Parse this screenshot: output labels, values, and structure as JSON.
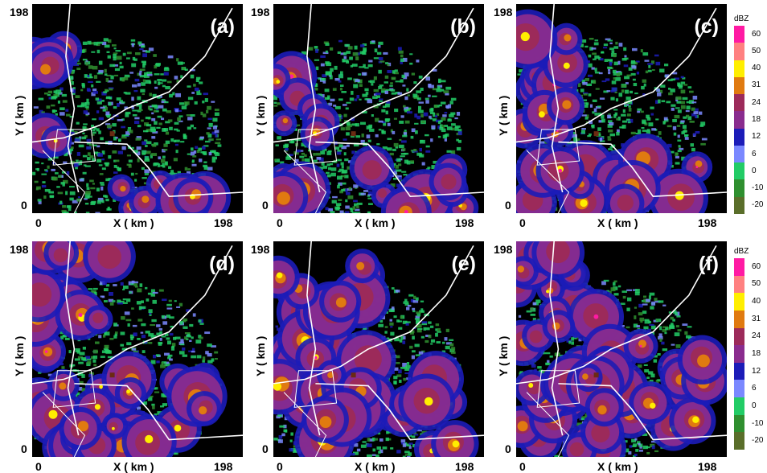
{
  "figure": {
    "x_axis_label": "X ( km )",
    "y_axis_label": "Y ( km )",
    "tick_min": "0",
    "tick_max": "198"
  },
  "panels": [
    {
      "letter": "(a)",
      "storm": 0.05
    },
    {
      "letter": "(b)",
      "storm": 0.22
    },
    {
      "letter": "(c)",
      "storm": 0.4
    },
    {
      "letter": "(d)",
      "storm": 0.6
    },
    {
      "letter": "(e)",
      "storm": 0.78
    },
    {
      "letter": "(f)",
      "storm": 0.95
    }
  ],
  "colorbar": {
    "title": "dBZ",
    "levels": [
      {
        "label": "60",
        "color": "#ff1aa3"
      },
      {
        "label": "50",
        "color": "#ff8080"
      },
      {
        "label": "40",
        "color": "#ffee00"
      },
      {
        "label": "31",
        "color": "#e07a10"
      },
      {
        "label": "24",
        "color": "#9c2a5a"
      },
      {
        "label": "18",
        "color": "#8a2c8e"
      },
      {
        "label": "12",
        "color": "#1c1cb8"
      },
      {
        "label": "6",
        "color": "#7a88ff"
      },
      {
        "label": "0",
        "color": "#22cc66"
      },
      {
        "label": "-10",
        "color": "#2f8f2f"
      },
      {
        "label": "-20",
        "color": "#5a6e2a"
      }
    ]
  }
}
